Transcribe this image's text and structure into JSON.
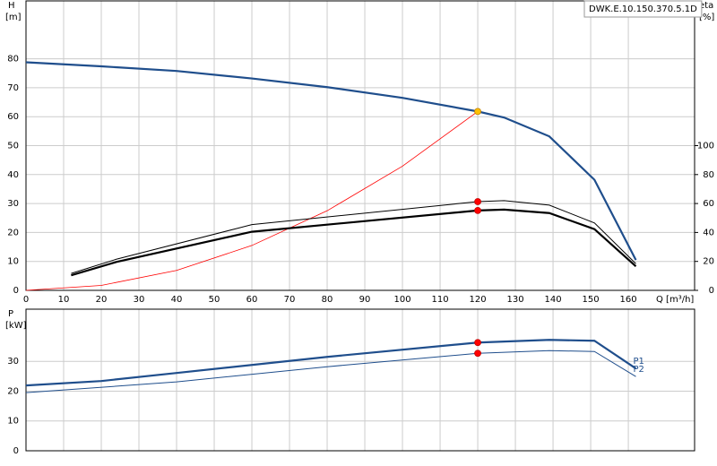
{
  "chart_data": [
    {
      "type": "line",
      "title": "DWK.E.10.150.370.5.1D",
      "ylabel": "H",
      "yunit": "[m]",
      "y2label": "eta",
      "y2unit": "[%]",
      "xlabel": "Q [m³/h]",
      "xlim": [
        0,
        177.6
      ],
      "xticks": [
        0,
        10,
        20,
        30,
        40,
        50,
        60,
        70,
        80,
        90,
        100,
        110,
        120,
        130,
        140,
        150,
        160
      ],
      "ylim": [
        0,
        100
      ],
      "yticks": [
        0,
        10,
        20,
        30,
        40,
        50,
        60,
        70,
        80
      ],
      "y2lim": [
        0,
        200
      ],
      "y2ticks": [
        0,
        20,
        40,
        60,
        80,
        100
      ],
      "grid": true,
      "series": [
        {
          "color": "#1f4e8c",
          "width": 2.2,
          "x": [
            0,
            20,
            40,
            60,
            80,
            100,
            120,
            127,
            139,
            151,
            162
          ],
          "values": [
            78.8,
            77.4,
            75.8,
            73.2,
            70.2,
            66.5,
            61.8,
            59.7,
            53.2,
            38.2,
            10.5
          ]
        },
        {
          "color": "#ff0000",
          "width": 0.8,
          "x": [
            0,
            20,
            40,
            60,
            80,
            100,
            120
          ],
          "values": [
            0,
            1.7,
            6.9,
            15.5,
            27.5,
            42.9,
            61.8
          ]
        },
        {
          "color": "#000000",
          "width": 1,
          "axis": "y2",
          "x": [
            12,
            24,
            60,
            120,
            127,
            139,
            151,
            162
          ],
          "values": [
            11.7,
            21.5,
            45.4,
            61.3,
            62,
            58.9,
            46.6,
            18.4
          ]
        },
        {
          "color": "#000000",
          "width": 2.2,
          "axis": "y2",
          "x": [
            12,
            24,
            60,
            120,
            127,
            139,
            151,
            162
          ],
          "values": [
            10.4,
            19.6,
            40.5,
            55.2,
            55.8,
            53.4,
            42.3,
            16.6
          ]
        },
        {
          "color": "#ffc000",
          "marker": true,
          "x": [
            120
          ],
          "values": [
            61.8
          ]
        },
        {
          "color": "#ff0000",
          "marker": true,
          "axis": "y2",
          "x": [
            120,
            120
          ],
          "values": [
            61.3,
            55.2
          ]
        }
      ]
    },
    {
      "type": "line",
      "ylabel": "P",
      "yunit": "[kW]",
      "xlim": [
        0,
        177.6
      ],
      "xticks": [
        0,
        10,
        20,
        30,
        40,
        50,
        60,
        70,
        80,
        90,
        100,
        110,
        120,
        130,
        140,
        150,
        160
      ],
      "ylim": [
        0,
        47.5
      ],
      "yticks": [
        0,
        10,
        20,
        30
      ],
      "grid": true,
      "series": [
        {
          "name": "P1",
          "color": "#1f4e8c",
          "width": 2.2,
          "x": [
            0,
            20,
            40,
            80,
            120,
            139,
            151,
            162
          ],
          "values": [
            21.9,
            23.4,
            26.1,
            31.5,
            36.3,
            37.2,
            36.9,
            27.6
          ]
        },
        {
          "name": "P2",
          "color": "#1f4e8c",
          "width": 1,
          "x": [
            0,
            40,
            80,
            120,
            139,
            151,
            162
          ],
          "values": [
            19.5,
            23.1,
            28.2,
            32.7,
            33.6,
            33.3,
            24.9
          ]
        },
        {
          "color": "#ff0000",
          "marker": true,
          "x": [
            120,
            120
          ],
          "values": [
            36.3,
            32.7
          ]
        }
      ]
    }
  ]
}
